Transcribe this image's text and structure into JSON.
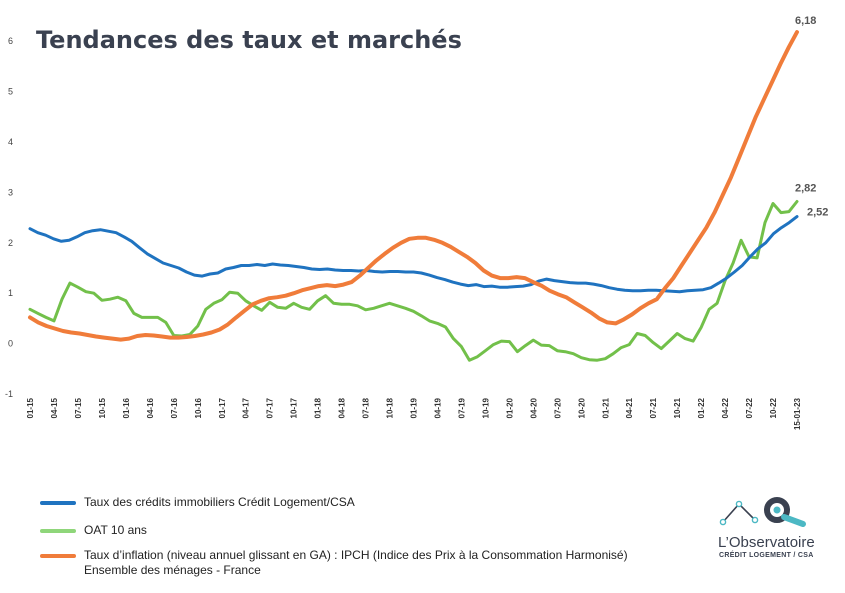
{
  "title": "Tendances des taux et marchés",
  "chart_data": {
    "type": "line",
    "ylim": [
      -1,
      6.5
    ],
    "yticks": [
      -1,
      0,
      1,
      2,
      3,
      4,
      5,
      6
    ],
    "x_tick_labels": [
      "01-15",
      "04-15",
      "07-15",
      "10-15",
      "01-16",
      "04-16",
      "07-16",
      "10-16",
      "01-17",
      "04-17",
      "07-17",
      "10-17",
      "01-18",
      "04-18",
      "07-18",
      "10-18",
      "01-19",
      "04-19",
      "07-19",
      "10-19",
      "01-20",
      "04-20",
      "07-20",
      "10-20",
      "01-21",
      "04-21",
      "07-21",
      "10-21",
      "01-22",
      "04-22",
      "07-22",
      "10-22",
      "15-01-23"
    ],
    "grid": false,
    "legend_position": "bottom",
    "series": [
      {
        "name": "Taux des crédits immobiliers Crédit Logement/CSA",
        "color": "#1f73c0",
        "end_label": "2,52",
        "values": [
          2.28,
          2.2,
          2.15,
          2.08,
          2.03,
          2.05,
          2.12,
          2.2,
          2.24,
          2.26,
          2.23,
          2.2,
          2.12,
          2.03,
          1.9,
          1.78,
          1.69,
          1.6,
          1.55,
          1.5,
          1.42,
          1.36,
          1.34,
          1.38,
          1.4,
          1.48,
          1.51,
          1.55,
          1.55,
          1.57,
          1.55,
          1.58,
          1.56,
          1.55,
          1.53,
          1.51,
          1.48,
          1.47,
          1.48,
          1.46,
          1.45,
          1.45,
          1.44,
          1.45,
          1.43,
          1.42,
          1.43,
          1.43,
          1.42,
          1.42,
          1.4,
          1.36,
          1.31,
          1.27,
          1.22,
          1.18,
          1.15,
          1.17,
          1.13,
          1.14,
          1.12,
          1.12,
          1.13,
          1.14,
          1.17,
          1.24,
          1.28,
          1.25,
          1.23,
          1.21,
          1.2,
          1.2,
          1.18,
          1.15,
          1.11,
          1.08,
          1.06,
          1.05,
          1.05,
          1.06,
          1.06,
          1.05,
          1.04,
          1.03,
          1.05,
          1.06,
          1.07,
          1.11,
          1.2,
          1.3,
          1.42,
          1.55,
          1.72,
          1.88,
          2.0,
          2.18,
          2.3,
          2.4,
          2.52
        ]
      },
      {
        "name": "OAT 10 ans",
        "color": "#72c04a",
        "end_label": "2,82",
        "values": [
          0.68,
          0.6,
          0.52,
          0.45,
          0.88,
          1.2,
          1.12,
          1.03,
          1.0,
          0.86,
          0.88,
          0.92,
          0.85,
          0.6,
          0.52,
          0.52,
          0.52,
          0.42,
          0.16,
          0.15,
          0.18,
          0.35,
          0.68,
          0.8,
          0.87,
          1.02,
          1.0,
          0.85,
          0.75,
          0.66,
          0.82,
          0.72,
          0.7,
          0.8,
          0.72,
          0.68,
          0.85,
          0.95,
          0.8,
          0.78,
          0.78,
          0.75,
          0.67,
          0.7,
          0.75,
          0.8,
          0.75,
          0.7,
          0.64,
          0.55,
          0.45,
          0.4,
          0.33,
          0.1,
          -0.06,
          -0.33,
          -0.26,
          -0.14,
          -0.02,
          0.05,
          0.04,
          -0.16,
          -0.04,
          0.07,
          -0.03,
          -0.04,
          -0.14,
          -0.16,
          -0.2,
          -0.28,
          -0.32,
          -0.33,
          -0.3,
          -0.2,
          -0.08,
          -0.02,
          0.2,
          0.16,
          0.02,
          -0.1,
          0.05,
          0.2,
          0.1,
          0.05,
          0.32,
          0.68,
          0.8,
          1.25,
          1.6,
          2.05,
          1.72,
          1.7,
          2.4,
          2.78,
          2.6,
          2.62,
          2.82
        ]
      },
      {
        "name": "Taux d’inflation (niveau annuel glissant en GA) : IPCH (Indice des Prix à la Consommation Harmonisé) Ensemble des ménages - France",
        "name_lines": [
          "Taux d’inflation (niveau annuel glissant en GA) : IPCH (Indice des Prix à la Consommation Harmonisé)",
          "Ensemble des ménages - France"
        ],
        "color": "#f07c3a",
        "end_label": "6,18",
        "values": [
          0.52,
          0.42,
          0.35,
          0.3,
          0.25,
          0.22,
          0.2,
          0.17,
          0.14,
          0.12,
          0.1,
          0.08,
          0.1,
          0.15,
          0.17,
          0.16,
          0.14,
          0.12,
          0.12,
          0.13,
          0.15,
          0.18,
          0.22,
          0.28,
          0.38,
          0.52,
          0.65,
          0.78,
          0.85,
          0.9,
          0.92,
          0.95,
          1.0,
          1.06,
          1.1,
          1.14,
          1.16,
          1.14,
          1.17,
          1.22,
          1.35,
          1.5,
          1.65,
          1.78,
          1.9,
          2.0,
          2.08,
          2.1,
          2.1,
          2.06,
          2.0,
          1.92,
          1.82,
          1.72,
          1.6,
          1.45,
          1.35,
          1.3,
          1.3,
          1.32,
          1.3,
          1.22,
          1.15,
          1.05,
          0.98,
          0.92,
          0.82,
          0.72,
          0.62,
          0.5,
          0.42,
          0.4,
          0.48,
          0.58,
          0.7,
          0.8,
          0.88,
          1.1,
          1.3,
          1.55,
          1.8,
          2.05,
          2.3,
          2.6,
          2.95,
          3.3,
          3.7,
          4.1,
          4.5,
          4.85,
          5.2,
          5.55,
          5.88,
          6.18
        ]
      }
    ]
  },
  "logo": {
    "name": "L’Observatoire",
    "sub": "CRÉDIT LOGEMENT / CSA"
  }
}
